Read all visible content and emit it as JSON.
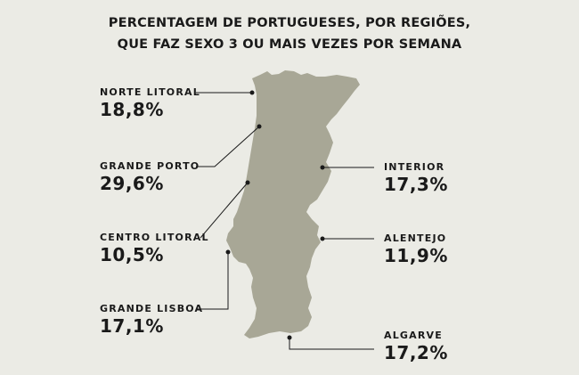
{
  "title_line1": "PERCENTAGEM DE PORTUGUESES, POR REGIÕES,",
  "title_line2": "QUE FAZ SEXO 3 OU MAIS VEZES POR SEMANA",
  "regions": [
    {
      "name": "NORTE LITORAL",
      "value": "18,8%"
    },
    {
      "name": "GRANDE PORTO",
      "value": "29,6%"
    },
    {
      "name": "CENTRO LITORAL",
      "value": "10,5%"
    },
    {
      "name": "GRANDE LISBOA",
      "value": "17,1%"
    },
    {
      "name": "INTERIOR",
      "value": "17,3%"
    },
    {
      "name": "ALENTEJO",
      "value": "11,9%"
    },
    {
      "name": "ALGARVE",
      "value": "17,2%"
    }
  ],
  "colors": {
    "background": "#ebebe5",
    "land": "#a8a796",
    "text": "#1a1a1a"
  }
}
